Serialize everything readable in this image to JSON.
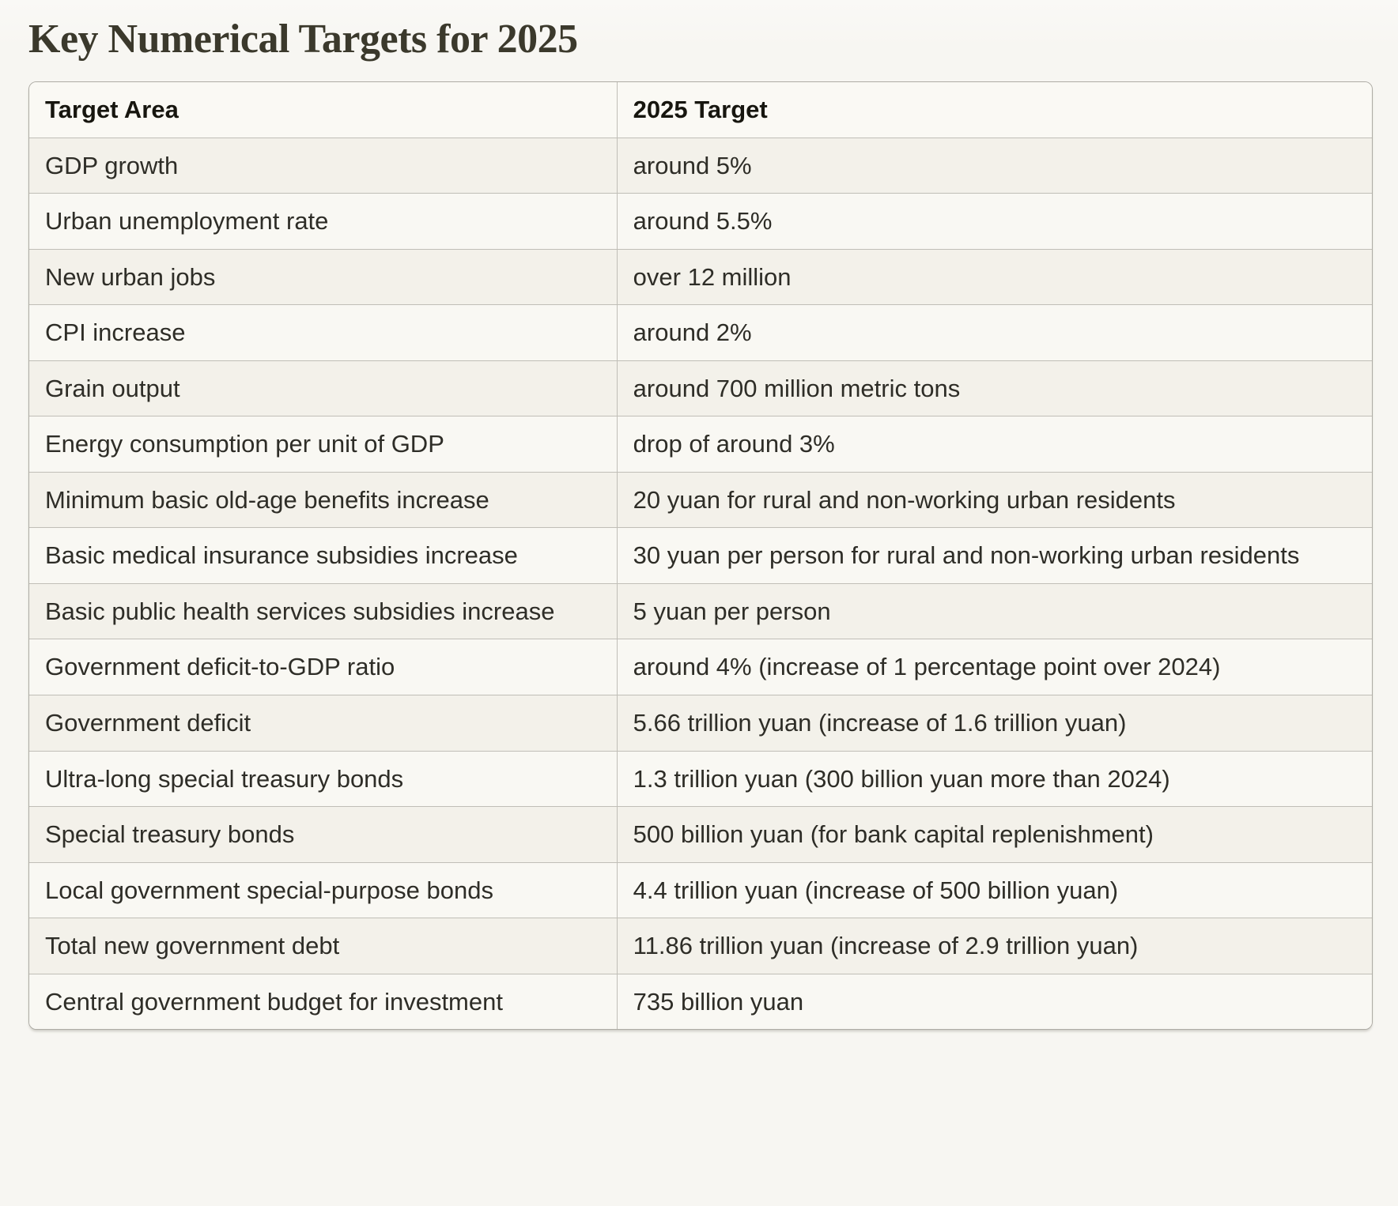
{
  "page": {
    "title": "Key Numerical Targets for 2025"
  },
  "table": {
    "headers": [
      "Target Area",
      "2025 Target"
    ],
    "rows": [
      {
        "area": "GDP growth",
        "target": "around 5%"
      },
      {
        "area": "Urban unemployment rate",
        "target": "around 5.5%"
      },
      {
        "area": "New urban jobs",
        "target": "over 12 million"
      },
      {
        "area": "CPI increase",
        "target": "around 2%"
      },
      {
        "area": "Grain output",
        "target": "around 700 million metric tons"
      },
      {
        "area": "Energy consumption per unit of GDP",
        "target": "drop of around 3%"
      },
      {
        "area": "Minimum basic old-age benefits increase",
        "target": "20 yuan for rural and non-working urban residents"
      },
      {
        "area": "Basic medical insurance subsidies increase",
        "target": "30 yuan per person for rural and non-working urban residents"
      },
      {
        "area": "Basic public health services subsidies increase",
        "target": "5 yuan per person"
      },
      {
        "area": "Government deficit-to-GDP ratio",
        "target": "around 4% (increase of 1 percentage point over 2024)"
      },
      {
        "area": "Government deficit",
        "target": "5.66 trillion yuan (increase of 1.6 trillion yuan)"
      },
      {
        "area": "Ultra-long special treasury bonds",
        "target": "1.3 trillion yuan (300 billion yuan more than 2024)"
      },
      {
        "area": "Special treasury bonds",
        "target": "500 billion yuan (for bank capital replenishment)"
      },
      {
        "area": "Local government special-purpose bonds",
        "target": "4.4 trillion yuan (increase of 500 billion yuan)"
      },
      {
        "area": "Total new government debt",
        "target": "11.86 trillion yuan (increase of 2.9 trillion yuan)"
      },
      {
        "area": "Central government budget for investment",
        "target": "735 billion yuan"
      }
    ]
  },
  "colors": {
    "page_bg": "#f7f6f2",
    "header_bg": "#faf9f4",
    "row_odd": "#f3f1ea",
    "row_even": "#f9f8f3",
    "border_outer": "#aeaca5",
    "border_inner": "#c0beb7",
    "title_text": "#3b392c",
    "body_text": "#2e2d27",
    "header_text": "#17160f"
  }
}
